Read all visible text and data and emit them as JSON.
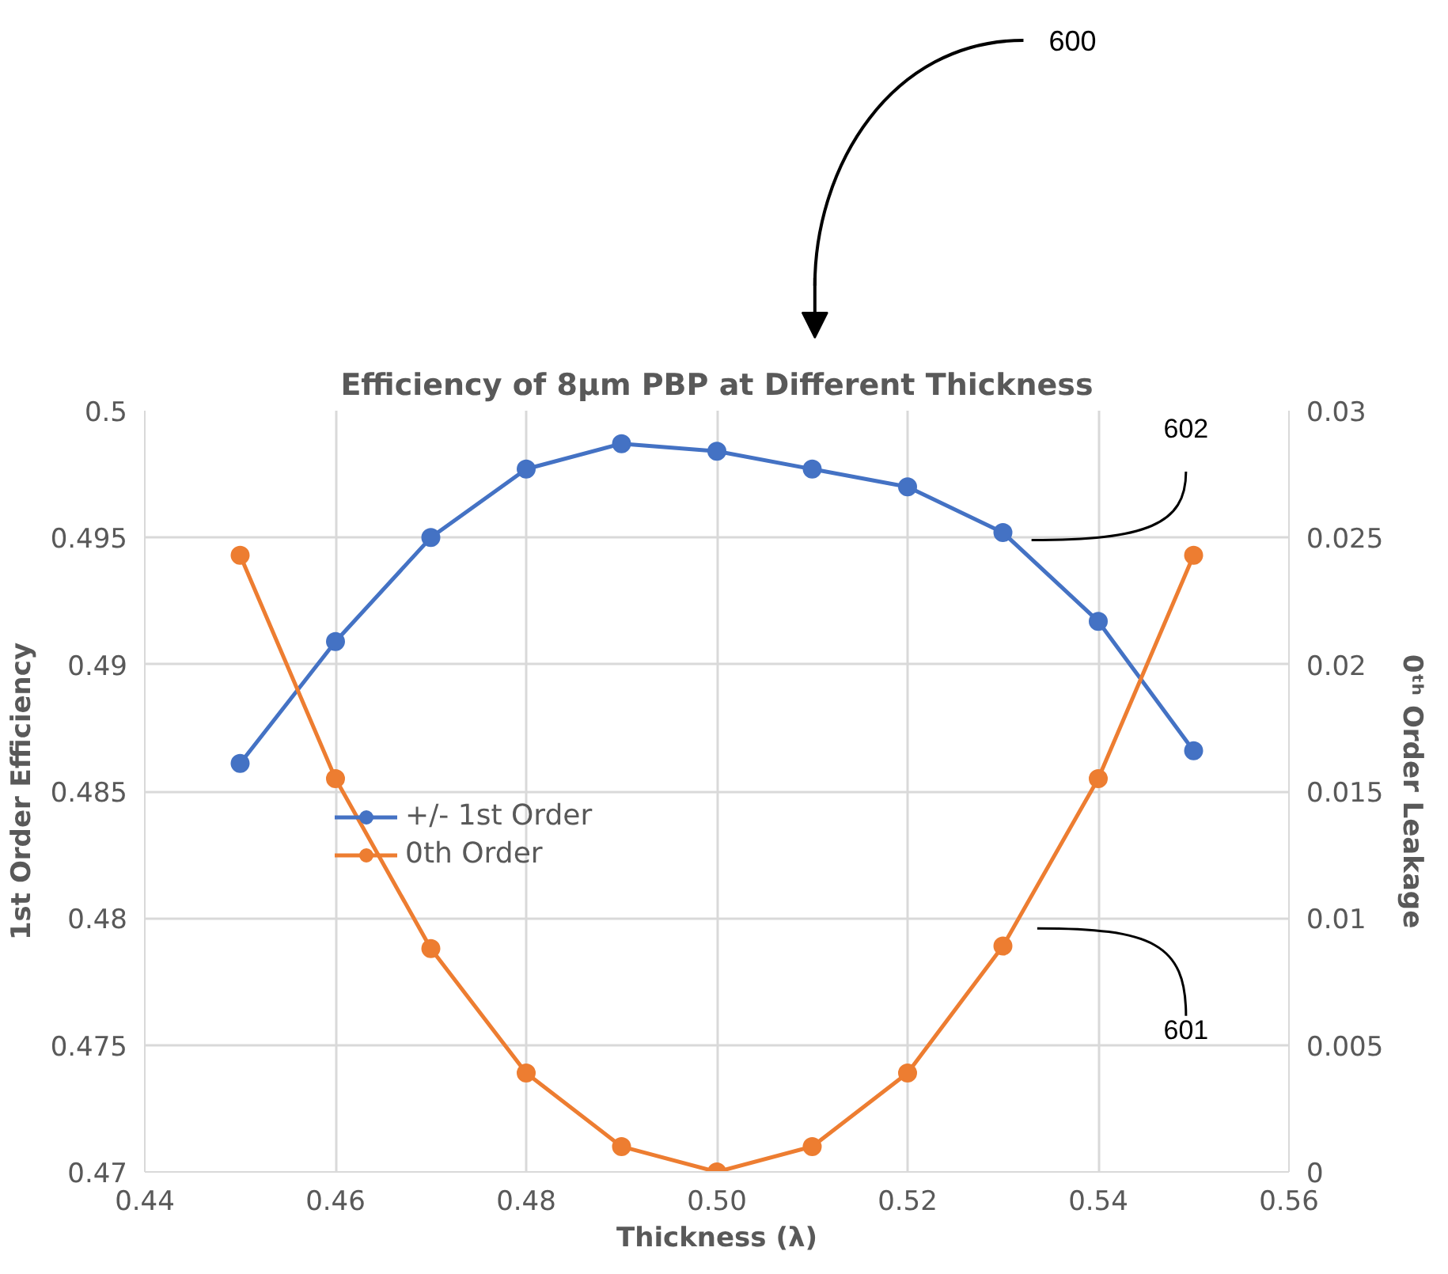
{
  "chart_data": {
    "type": "line",
    "title": "Efficiency of 8µm PBP at Different Thickness",
    "xlabel": "Thickness (λ)",
    "ylabel": "1st Order Efficiency",
    "y2label": "0ᵗʰ Order Leakage",
    "x": [
      0.45,
      0.46,
      0.47,
      0.48,
      0.49,
      0.5,
      0.51,
      0.52,
      0.53,
      0.54,
      0.55
    ],
    "series": [
      {
        "name": "+/- 1st Order",
        "color": "#4472c4",
        "values": [
          0.4861,
          0.4909,
          0.495,
          0.4977,
          0.4987,
          0.4984,
          0.4977,
          0.497,
          0.4952,
          0.4917,
          0.4866
        ]
      },
      {
        "name": "0th Order",
        "color": "#ed7d31",
        "axis": "y2",
        "values": [
          0.0243,
          0.0155,
          0.0088,
          0.0039,
          0.001,
          0,
          0.001,
          0.0039,
          0.0089,
          0.0155,
          0.0243
        ]
      }
    ],
    "xlim": [
      0.44,
      0.56
    ],
    "xticks": [
      0.44,
      0.46,
      0.48,
      {
        "value": 0.5,
        "label": "0.50"
      },
      0.52,
      0.54,
      0.56
    ],
    "ylim": [
      0.47,
      0.5
    ],
    "yticks": [
      0.47,
      0.475,
      0.48,
      0.485,
      0.49,
      0.495,
      0.5
    ],
    "y2lim": [
      0,
      0.03
    ],
    "y2ticks": [
      0,
      0.005,
      0.01,
      0.015,
      0.02,
      0.025,
      0.03
    ],
    "grid": true,
    "legend": "left",
    "marker": "circle",
    "line_style": "solid",
    "annotations": [
      "600",
      "602",
      "601"
    ]
  }
}
